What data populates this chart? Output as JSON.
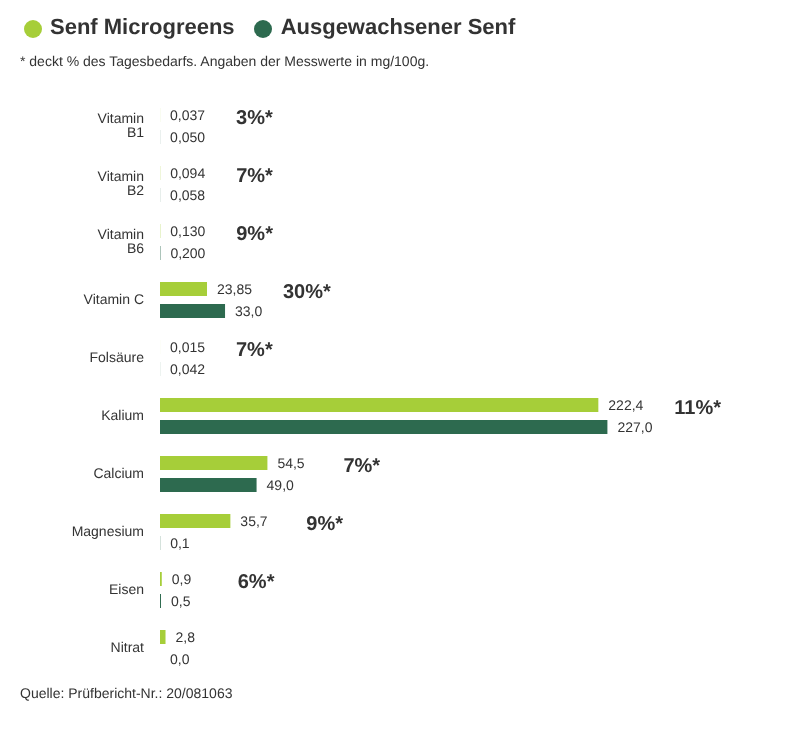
{
  "chart_data": {
    "type": "bar",
    "orientation": "horizontal",
    "subtitle": "* deckt % des Tagesbedarfs. Angaben der Messwerte in mg/100g.",
    "categories": [
      "Vitamin B1",
      "Vitamin B2",
      "Vitamin B6",
      "Vitamin C",
      "Folsäure",
      "Kalium",
      "Calcium",
      "Magnesium",
      "Eisen",
      "Nitrat"
    ],
    "series": [
      {
        "name": "Senf Microgreens",
        "color": "#a6ce39",
        "values": [
          0.037,
          0.094,
          0.13,
          23.85,
          0.015,
          222.4,
          54.5,
          35.7,
          0.9,
          2.8
        ],
        "value_labels": [
          "0,037",
          "0,094",
          "0,130",
          "23,85",
          "0,015",
          "222,4",
          "54,5",
          "35,7",
          "0,9",
          "2,8"
        ]
      },
      {
        "name": "Ausgewachsener Senf",
        "color": "#2d6a4f",
        "values": [
          0.05,
          0.058,
          0.2,
          33,
          0.042,
          227,
          49,
          0.1,
          0.5,
          0
        ],
        "value_labels": [
          "0,050",
          "0,058",
          "0,200",
          "33,0",
          "0,042",
          "227,0",
          "49,0",
          "0,1",
          "0,5",
          "0,0"
        ]
      }
    ],
    "annotations": [
      "3%*",
      "7%*",
      "9%*",
      "30%*",
      "7%*",
      "11%*",
      "7%*",
      "9%*",
      "6%*",
      "Quelle: Prüfbericht-Nr.: 20/081063"
    ],
    "legend": "top left",
    "grid": false,
    "tick_labels": "y"
  }
}
